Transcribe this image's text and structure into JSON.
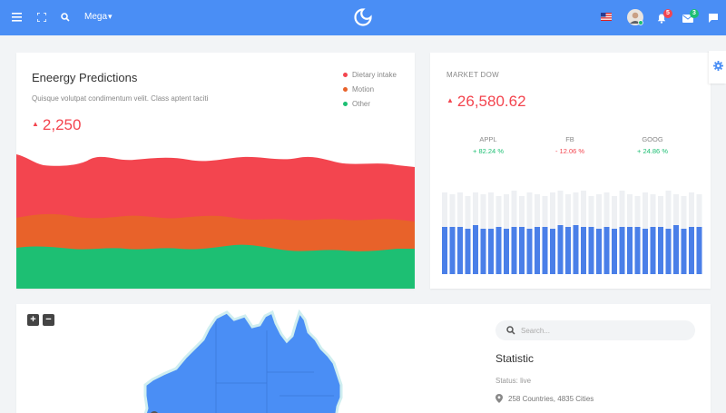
{
  "header": {
    "menu_label": "Mega",
    "notifications_count": "5",
    "messages_count": "3"
  },
  "energy": {
    "title": "Eneergy Predictions",
    "subtitle": "Quisque volutpat condimentum velit. Class aptent taciti",
    "value": "2,250",
    "legend": [
      {
        "label": "Dietary intake",
        "color": "#f3454f"
      },
      {
        "label": "Motion",
        "color": "#e8622a"
      },
      {
        "label": "Other",
        "color": "#1dbf73"
      }
    ]
  },
  "market": {
    "title": "MARKET DOW",
    "value": "26,580.62",
    "stocks": [
      {
        "name": "APPL",
        "change": "+ 82.24 %",
        "color": "#1dbf73"
      },
      {
        "name": "FB",
        "change": "- 12.06 %",
        "color": "#f3454f"
      },
      {
        "name": "GOOG",
        "change": "+ 24.86 %",
        "color": "#1dbf73"
      }
    ]
  },
  "map_panel": {
    "zoom_in": "+",
    "zoom_out": "−",
    "search_placeholder": "Search...",
    "stat_title": "Statistic",
    "stat_status": "Status: live",
    "stat_info": "258 Countries, 4835 Cities"
  },
  "colors": {
    "accent": "#4a8ef5",
    "red": "#f3454f",
    "orange": "#e8622a",
    "green": "#1dbf73",
    "bar": "#4a7fe8",
    "bar_bg": "#eef0f3"
  },
  "icons": [
    "menu-icon",
    "fullscreen-icon",
    "search-icon",
    "logo-icon",
    "us-flag-icon",
    "avatar",
    "bell-icon",
    "mail-icon",
    "chat-icon",
    "gear-icon",
    "map-pin-icon"
  ]
}
